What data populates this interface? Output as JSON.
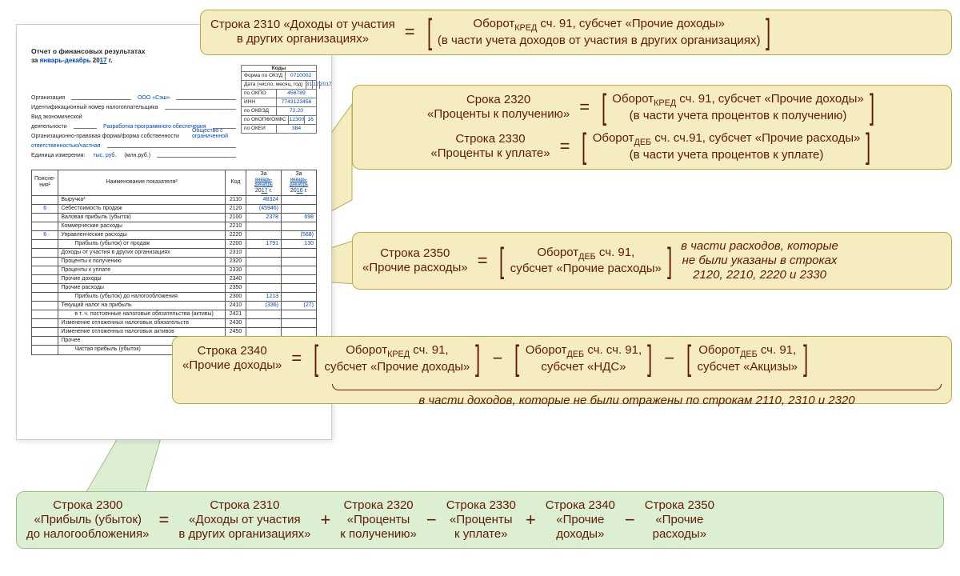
{
  "colors": {
    "yellow_bg": "#f5edc0",
    "yellow_border": "#b8a94f",
    "green_bg": "#dcefd3",
    "green_border": "#9abf88",
    "text_brown": "#5f1b00",
    "doc_blue": "#0047c4"
  },
  "doc": {
    "title": "Отчет о финансовых результатах",
    "period_prefix": "за",
    "period_text": "январь-декабрь",
    "period_year_prefix": "20",
    "period_year": "17",
    "period_suffix": "г.",
    "codes_caption": "Коды",
    "codes": {
      "okud_label": "Форма по ОКУД",
      "okud": "0710002",
      "date_label": "Дата (число, месяц, год)",
      "date_day": "31",
      "date_month": "12",
      "date_year": "2017",
      "okpo_label": "по ОКПО",
      "okpo": "456789",
      "inn_label": "ИНН",
      "inn": "7743123456",
      "okved_label": "по ОКВЭД",
      "okved": "72.20",
      "okopf_label": "по ОКОПФ/ОКФС",
      "okopf": "12300",
      "okfs": "16",
      "okei_label": "по ОКЕИ",
      "okei": "384"
    },
    "fields": {
      "org_label": "Организация",
      "org_value": "ООО «Сэш»",
      "inn_label": "Идентификационный номер налогоплательщика",
      "activity_label": "Вид экономической",
      "activity_label2": "деятельности",
      "activity_value": "Разработка программного обеспечения",
      "opf_label": "Организационно-правовая форма/форма собственности",
      "opf_value": "Общество с ограниченной",
      "opf_value2": "ответственностью/частная",
      "unit_label": "Единица измерения:",
      "unit_value": "тыс. руб.",
      "unit_note": "(млн.руб.)"
    },
    "table": {
      "head_col1": "Поясне-\nния¹",
      "head_col2": "Наименование показателя²",
      "head_col3": "Код",
      "head_col4_pfx": "За",
      "head_period_a": "январь-\nдекабрь",
      "head_year_a": "17",
      "head_period_b": "январь-\nдекабрь",
      "head_year_b": "16",
      "rows": [
        {
          "exp": "",
          "name": "Выручка³",
          "code": "2110",
          "a": "48324",
          "b": ""
        },
        {
          "exp": "6",
          "name": "Себестоимость продаж",
          "code": "2120",
          "a": "(45946)",
          "b": ""
        },
        {
          "exp": "",
          "name": "Валовая прибыль (убыток)",
          "code": "2100",
          "a": "2378",
          "b": "698"
        },
        {
          "exp": "",
          "name": "Коммерческие расходы",
          "code": "2210",
          "a": "",
          "b": ""
        },
        {
          "exp": "6",
          "name": "Управленческие расходы",
          "code": "2220",
          "a": "",
          "b": "(568)"
        },
        {
          "exp": "",
          "name": "Прибыль (убыток) от продаж",
          "indent": true,
          "code": "2200",
          "a": "1791",
          "b": "130"
        },
        {
          "exp": "",
          "name": "Доходы от участия в других организациях",
          "code": "2310",
          "a": "",
          "b": ""
        },
        {
          "exp": "",
          "name": "Проценты к получению",
          "code": "2320",
          "a": "",
          "b": ""
        },
        {
          "exp": "",
          "name": "Проценты к уплате",
          "code": "2330",
          "a": "",
          "b": ""
        },
        {
          "exp": "",
          "name": "Прочие доходы",
          "code": "2340",
          "a": "",
          "b": ""
        },
        {
          "exp": "",
          "name": "Прочие расходы",
          "code": "2350",
          "a": "",
          "b": ""
        },
        {
          "exp": "",
          "name": "Прибыль (убыток) до налогообложения",
          "indent": true,
          "code": "2300",
          "a": "1213",
          "b": ""
        },
        {
          "exp": "",
          "name": "Текущий налог на прибыль",
          "code": "2410",
          "a": "(336)",
          "b": "(27)"
        },
        {
          "exp": "",
          "name": "в т. ч. постоянные налоговые обязательства (активы)",
          "indent": true,
          "code": "2421",
          "a": "",
          "b": ""
        },
        {
          "exp": "",
          "name": "Изменение отложенных налоговых обязательств",
          "code": "2430",
          "a": "",
          "b": ""
        },
        {
          "exp": "",
          "name": "Изменение отложенных налоговых активов",
          "code": "2450",
          "a": "",
          "b": ""
        },
        {
          "exp": "",
          "name": "Прочее",
          "code": "2460",
          "a": "(91)",
          "b": ""
        },
        {
          "exp": "",
          "name": "Чистая прибыль (убыток)",
          "indent": true,
          "code": "2400",
          "a": "786",
          "b": "86"
        }
      ]
    }
  },
  "c1": {
    "lhs_l1": "Строка 2310 «Доходы от участия",
    "lhs_l2": "в других организациях»",
    "rhs_l1": "Оборот<sub>КРЕД</sub> сч. 91, субсчет «Прочие доходы»",
    "rhs_l2": "(в части учета доходов от участия в других организациях)"
  },
  "c2a": {
    "lhs_l1": "Срока 2320",
    "lhs_l2": "«Проценты к получению»",
    "rhs_l1": "Оборот<sub>КРЕД</sub> сч. 91, субсчет «Прочие доходы»",
    "rhs_l2": "(в части учета процентов к получению)"
  },
  "c2b": {
    "lhs_l1": "Строка 2330",
    "lhs_l2": "«Проценты к уплате»",
    "rhs_l1": "Оборот<sub>ДЕБ</sub> сч. сч.91, субсчет «Прочие расходы»",
    "rhs_l2": "(в части учета процентов к уплате)"
  },
  "c3": {
    "lhs_l1": "Строка 2350",
    "lhs_l2": "«Прочие расходы»",
    "rhs_l1": "Оборот<sub>ДЕБ</sub> сч. 91,",
    "rhs_l2": "субсчет «Прочие расходы»",
    "note_l1": "в части расходов, которые",
    "note_l2": "не были указаны в строках",
    "note_l3": "2120, 2210, 2220 и 2330"
  },
  "c4": {
    "lhs_l1": "Строка 2340",
    "lhs_l2": "«Прочие доходы»",
    "t1_l1": "Оборот<sub>КРЕД</sub> сч. 91,",
    "t1_l2": "субсчет «Прочие доходы»",
    "t2_l1": "Оборот<sub>ДЕБ</sub> сч. сч. 91,",
    "t2_l2": "субсчет «НДС»",
    "t3_l1": "Оборот<sub>ДЕБ</sub> сч. 91,",
    "t3_l2": "субсчет «Акцизы»",
    "footnote": "в части доходов, которые не были отражены по строкам 2110, 2310 и 2320"
  },
  "c5": {
    "t0_l1": "Строка 2300",
    "t0_l2": "«Прибыль (убыток)",
    "t0_l3": "до налогообложения»",
    "t1_l1": "Строка 2310",
    "t1_l2": "«Доходы от участия",
    "t1_l3": "в других организациях»",
    "t2_l1": "Строка 2320",
    "t2_l2": "«Проценты",
    "t2_l3": "к получению»",
    "t3_l1": "Строка 2330",
    "t3_l2": "«Проценты",
    "t3_l3": "к уплате»",
    "t4_l1": "Строка 2340",
    "t4_l2": "«Прочие",
    "t4_l3": "доходы»",
    "t5_l1": "Строка 2350",
    "t5_l2": "«Прочие",
    "t5_l3": "расходы»"
  },
  "ops": {
    "eq": "=",
    "plus": "+",
    "minus": "−"
  }
}
